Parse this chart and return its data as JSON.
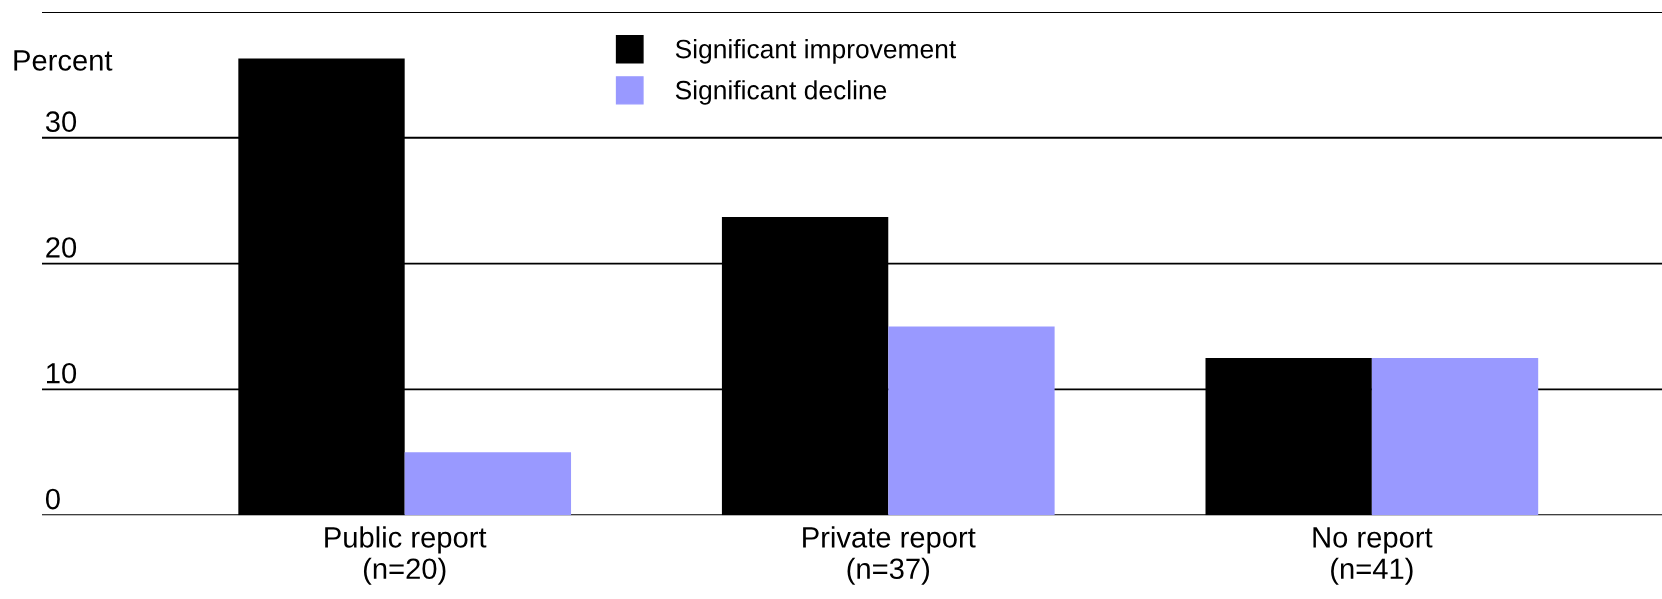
{
  "chart_data": {
    "type": "bar",
    "ylabel": "Percent",
    "categories": [
      "Public report\n(n=20)",
      "Private report\n(n=37)",
      "No report\n(n=41)"
    ],
    "series": [
      {
        "name": "Significant improvement",
        "color": "#000000",
        "values": [
          36.3,
          23.7,
          12.5
        ]
      },
      {
        "name": "Significant decline",
        "color": "#9999ff",
        "values": [
          5,
          15,
          12.5
        ]
      }
    ],
    "ylim": [
      0,
      40
    ],
    "yticks": [
      0,
      10,
      20,
      30,
      {
        "value": 40,
        "label": null
      }
    ],
    "grid": "y",
    "legend": "top"
  }
}
